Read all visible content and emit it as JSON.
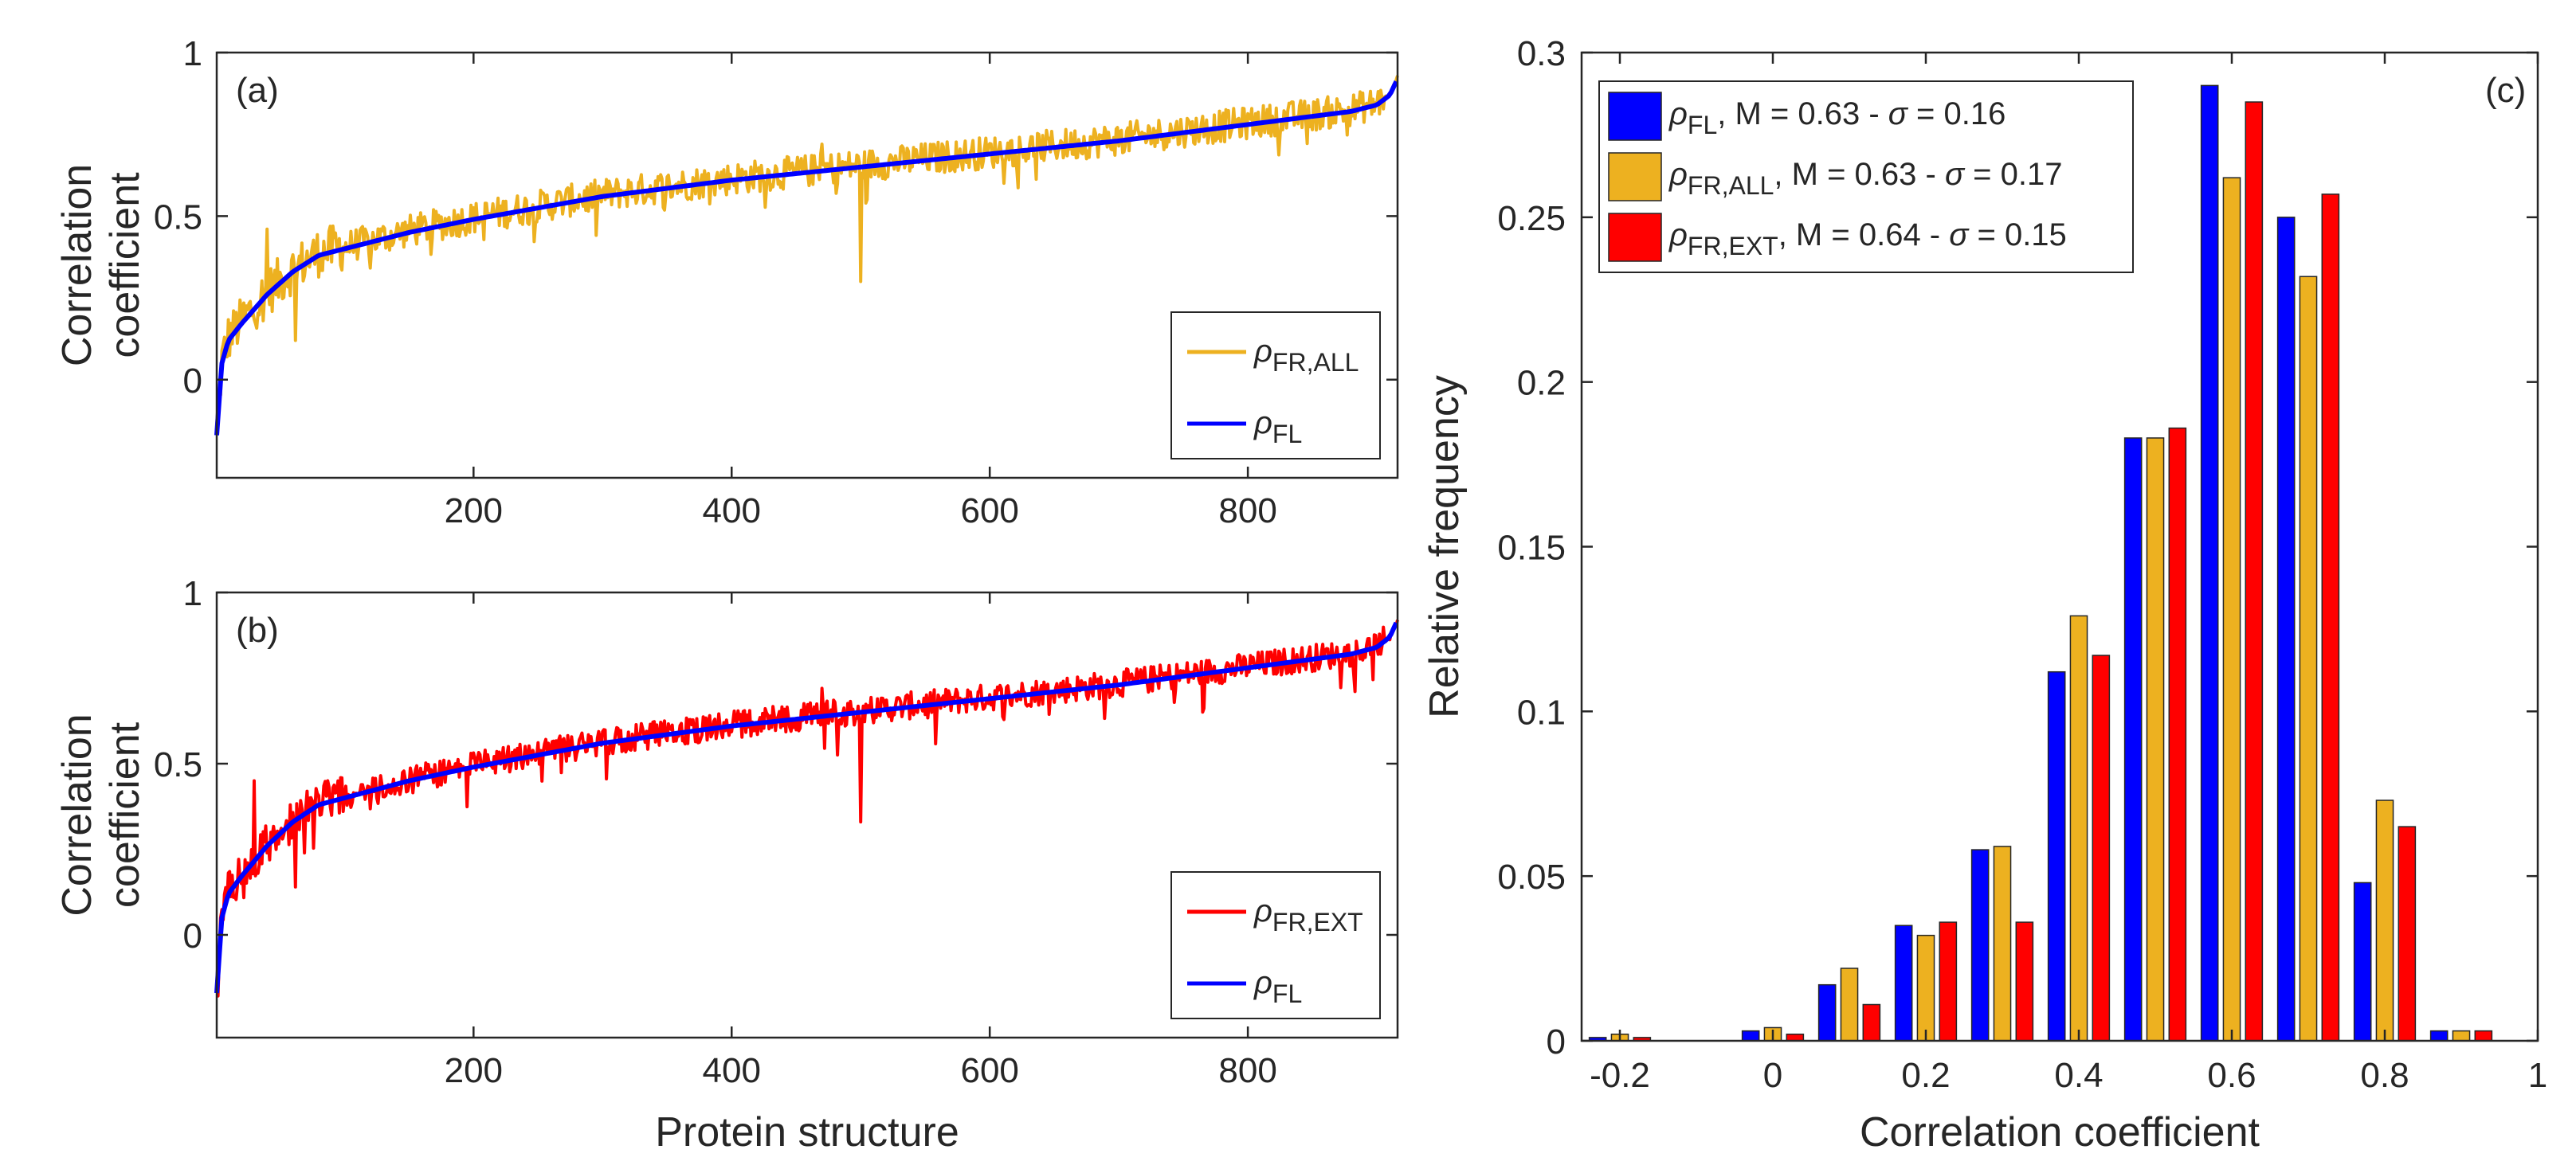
{
  "figure": {
    "panels": [
      "(a)",
      "(b)",
      "(c)"
    ]
  },
  "chart_data": [
    {
      "type": "line",
      "panel_label": "(a)",
      "title": "",
      "xlabel": "",
      "ylabel": "Correlation coefficient",
      "ylabel_lines": [
        "Correlation",
        "coefficient"
      ],
      "xlim": [
        1,
        916
      ],
      "ylim": [
        -0.3,
        1
      ],
      "xticks": [
        200,
        400,
        600,
        800
      ],
      "yticks": [
        0,
        0.5,
        1
      ],
      "ytick_labels": [
        "0",
        "0.5",
        "1"
      ],
      "legend_position": "bottom-right",
      "series": [
        {
          "name": "ρFR,ALL",
          "symbol": "ρ",
          "subscript": "FR,ALL",
          "color": "#EDB120",
          "kind": "noisy-around-reference",
          "noise_amplitude": 0.05,
          "spikes": [
            {
              "x": 40,
              "y": 0.46
            },
            {
              "x": 62,
              "y": 0.12
            },
            {
              "x": 470,
              "y": 0.72
            },
            {
              "x": 500,
              "y": 0.3
            }
          ]
        },
        {
          "name": "ρFL",
          "symbol": "ρ",
          "subscript": "FL",
          "color": "#0000FF",
          "kind": "reference",
          "x": [
            1,
            5,
            10,
            20,
            40,
            60,
            80,
            100,
            150,
            200,
            300,
            400,
            500,
            600,
            700,
            800,
            880,
            900,
            910,
            916
          ],
          "y": [
            -0.17,
            0.05,
            0.12,
            0.17,
            0.26,
            0.33,
            0.38,
            0.4,
            0.45,
            0.49,
            0.56,
            0.61,
            0.65,
            0.69,
            0.73,
            0.78,
            0.82,
            0.84,
            0.87,
            0.92
          ]
        }
      ]
    },
    {
      "type": "line",
      "panel_label": "(b)",
      "title": "",
      "xlabel": "Protein structure",
      "ylabel": "Correlation coefficient",
      "ylabel_lines": [
        "Correlation",
        "coefficient"
      ],
      "xlim": [
        1,
        916
      ],
      "ylim": [
        -0.3,
        1
      ],
      "xticks": [
        200,
        400,
        600,
        800
      ],
      "yticks": [
        0,
        0.5,
        1
      ],
      "ytick_labels": [
        "0",
        "0.5",
        "1"
      ],
      "legend_position": "bottom-right",
      "series": [
        {
          "name": "ρFR,EXT",
          "symbol": "ρ",
          "subscript": "FR,EXT",
          "color": "#FF0000",
          "kind": "noisy-around-reference",
          "noise_amplitude": 0.04,
          "spikes": [
            {
              "x": 30,
              "y": 0.45
            },
            {
              "x": 62,
              "y": 0.14
            },
            {
              "x": 470,
              "y": 0.72
            },
            {
              "x": 500,
              "y": 0.33
            }
          ]
        },
        {
          "name": "ρFL",
          "symbol": "ρ",
          "subscript": "FL",
          "color": "#0000FF",
          "kind": "reference",
          "x": [
            1,
            5,
            10,
            20,
            40,
            60,
            80,
            100,
            150,
            200,
            300,
            400,
            500,
            600,
            700,
            800,
            880,
            900,
            910,
            916
          ],
          "y": [
            -0.17,
            0.05,
            0.12,
            0.17,
            0.26,
            0.33,
            0.38,
            0.4,
            0.45,
            0.49,
            0.56,
            0.61,
            0.65,
            0.69,
            0.73,
            0.78,
            0.82,
            0.84,
            0.87,
            0.92
          ]
        }
      ]
    },
    {
      "type": "bar",
      "panel_label": "(c)",
      "title": "",
      "xlabel": "Correlation coefficient",
      "ylabel": "Relative frequency",
      "xlim": [
        -0.25,
        1.0
      ],
      "ylim": [
        0,
        0.3
      ],
      "xticks": [
        -0.2,
        0,
        0.2,
        0.4,
        0.6,
        0.8,
        1
      ],
      "xtick_labels": [
        "-0.2",
        "0",
        "0.2",
        "0.4",
        "0.6",
        "0.8",
        "1"
      ],
      "yticks": [
        0,
        0.05,
        0.1,
        0.15,
        0.2,
        0.25,
        0.3
      ],
      "ytick_labels": [
        "0",
        "0.05",
        "0.1",
        "0.15",
        "0.2",
        "0.25",
        "0.3"
      ],
      "legend_position": "top-left",
      "bin_centers": [
        -0.2,
        -0.1,
        0.0,
        0.1,
        0.2,
        0.3,
        0.4,
        0.5,
        0.6,
        0.7,
        0.8,
        0.9
      ],
      "series": [
        {
          "name": "ρFL",
          "symbol": "ρ",
          "subscript": "FL",
          "stats": ", M = 0.63 - σ = 0.16",
          "color": "#0000FF",
          "values": [
            0.001,
            0,
            0.003,
            0.017,
            0.035,
            0.058,
            0.112,
            0.183,
            0.29,
            0.25,
            0.048,
            0.003
          ]
        },
        {
          "name": "ρFR,ALL",
          "symbol": "ρ",
          "subscript": "FR,ALL",
          "stats": ", M = 0.63 - σ = 0.17",
          "color": "#EDB120",
          "values": [
            0.002,
            0,
            0.004,
            0.022,
            0.032,
            0.059,
            0.129,
            0.183,
            0.262,
            0.232,
            0.073,
            0.003
          ]
        },
        {
          "name": "ρFR,EXT",
          "symbol": "ρ",
          "subscript": "FR,EXT",
          "stats": ", M = 0.64 - σ = 0.15",
          "color": "#FF0000",
          "values": [
            0.001,
            0,
            0.002,
            0.011,
            0.036,
            0.036,
            0.117,
            0.186,
            0.285,
            0.257,
            0.065,
            0.003
          ]
        }
      ]
    }
  ]
}
